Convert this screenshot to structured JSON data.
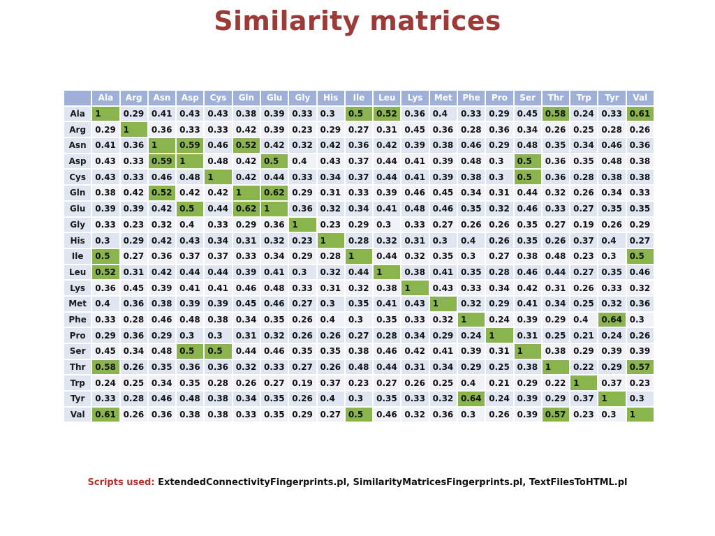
{
  "title": "Similarity matrices",
  "matrix": {
    "highlight_threshold": 0.5,
    "colors": {
      "header": "#9fb0d8",
      "row_odd": "#dfe5f1",
      "row_even": "#f0f2f7",
      "highlight": "#8ab44e",
      "title": "#9b3a36"
    },
    "columns": [
      "Ala",
      "Arg",
      "Asn",
      "Asp",
      "Cys",
      "Gln",
      "Glu",
      "Gly",
      "His",
      "Ile",
      "Leu",
      "Lys",
      "Met",
      "Phe",
      "Pro",
      "Ser",
      "Thr",
      "Trp",
      "Tyr",
      "Val"
    ],
    "rows": [
      {
        "label": "Ala",
        "values": [
          "1",
          "0.29",
          "0.41",
          "0.43",
          "0.43",
          "0.38",
          "0.39",
          "0.33",
          "0.3",
          "0.5",
          "0.52",
          "0.36",
          "0.4",
          "0.33",
          "0.29",
          "0.45",
          "0.58",
          "0.24",
          "0.33",
          "0.61"
        ]
      },
      {
        "label": "Arg",
        "values": [
          "0.29",
          "1",
          "0.36",
          "0.33",
          "0.33",
          "0.42",
          "0.39",
          "0.23",
          "0.29",
          "0.27",
          "0.31",
          "0.45",
          "0.36",
          "0.28",
          "0.36",
          "0.34",
          "0.26",
          "0.25",
          "0.28",
          "0.26"
        ]
      },
      {
        "label": "Asn",
        "values": [
          "0.41",
          "0.36",
          "1",
          "0.59",
          "0.46",
          "0.52",
          "0.42",
          "0.32",
          "0.42",
          "0.36",
          "0.42",
          "0.39",
          "0.38",
          "0.46",
          "0.29",
          "0.48",
          "0.35",
          "0.34",
          "0.46",
          "0.36"
        ]
      },
      {
        "label": "Asp",
        "values": [
          "0.43",
          "0.33",
          "0.59",
          "1",
          "0.48",
          "0.42",
          "0.5",
          "0.4",
          "0.43",
          "0.37",
          "0.44",
          "0.41",
          "0.39",
          "0.48",
          "0.3",
          "0.5",
          "0.36",
          "0.35",
          "0.48",
          "0.38"
        ]
      },
      {
        "label": "Cys",
        "values": [
          "0.43",
          "0.33",
          "0.46",
          "0.48",
          "1",
          "0.42",
          "0.44",
          "0.33",
          "0.34",
          "0.37",
          "0.44",
          "0.41",
          "0.39",
          "0.38",
          "0.3",
          "0.5",
          "0.36",
          "0.28",
          "0.38",
          "0.38"
        ]
      },
      {
        "label": "Gln",
        "values": [
          "0.38",
          "0.42",
          "0.52",
          "0.42",
          "0.42",
          "1",
          "0.62",
          "0.29",
          "0.31",
          "0.33",
          "0.39",
          "0.46",
          "0.45",
          "0.34",
          "0.31",
          "0.44",
          "0.32",
          "0.26",
          "0.34",
          "0.33"
        ]
      },
      {
        "label": "Glu",
        "values": [
          "0.39",
          "0.39",
          "0.42",
          "0.5",
          "0.44",
          "0.62",
          "1",
          "0.36",
          "0.32",
          "0.34",
          "0.41",
          "0.48",
          "0.46",
          "0.35",
          "0.32",
          "0.46",
          "0.33",
          "0.27",
          "0.35",
          "0.35"
        ]
      },
      {
        "label": "Gly",
        "values": [
          "0.33",
          "0.23",
          "0.32",
          "0.4",
          "0.33",
          "0.29",
          "0.36",
          "1",
          "0.23",
          "0.29",
          "0.3",
          "0.33",
          "0.27",
          "0.26",
          "0.26",
          "0.35",
          "0.27",
          "0.19",
          "0.26",
          "0.29"
        ]
      },
      {
        "label": "His",
        "values": [
          "0.3",
          "0.29",
          "0.42",
          "0.43",
          "0.34",
          "0.31",
          "0.32",
          "0.23",
          "1",
          "0.28",
          "0.32",
          "0.31",
          "0.3",
          "0.4",
          "0.26",
          "0.35",
          "0.26",
          "0.37",
          "0.4",
          "0.27"
        ]
      },
      {
        "label": "Ile",
        "values": [
          "0.5",
          "0.27",
          "0.36",
          "0.37",
          "0.37",
          "0.33",
          "0.34",
          "0.29",
          "0.28",
          "1",
          "0.44",
          "0.32",
          "0.35",
          "0.3",
          "0.27",
          "0.38",
          "0.48",
          "0.23",
          "0.3",
          "0.5"
        ]
      },
      {
        "label": "Leu",
        "values": [
          "0.52",
          "0.31",
          "0.42",
          "0.44",
          "0.44",
          "0.39",
          "0.41",
          "0.3",
          "0.32",
          "0.44",
          "1",
          "0.38",
          "0.41",
          "0.35",
          "0.28",
          "0.46",
          "0.44",
          "0.27",
          "0.35",
          "0.46"
        ]
      },
      {
        "label": "Lys",
        "values": [
          "0.36",
          "0.45",
          "0.39",
          "0.41",
          "0.41",
          "0.46",
          "0.48",
          "0.33",
          "0.31",
          "0.32",
          "0.38",
          "1",
          "0.43",
          "0.33",
          "0.34",
          "0.42",
          "0.31",
          "0.26",
          "0.33",
          "0.32"
        ]
      },
      {
        "label": "Met",
        "values": [
          "0.4",
          "0.36",
          "0.38",
          "0.39",
          "0.39",
          "0.45",
          "0.46",
          "0.27",
          "0.3",
          "0.35",
          "0.41",
          "0.43",
          "1",
          "0.32",
          "0.29",
          "0.41",
          "0.34",
          "0.25",
          "0.32",
          "0.36"
        ]
      },
      {
        "label": "Phe",
        "values": [
          "0.33",
          "0.28",
          "0.46",
          "0.48",
          "0.38",
          "0.34",
          "0.35",
          "0.26",
          "0.4",
          "0.3",
          "0.35",
          "0.33",
          "0.32",
          "1",
          "0.24",
          "0.39",
          "0.29",
          "0.4",
          "0.64",
          "0.3"
        ]
      },
      {
        "label": "Pro",
        "values": [
          "0.29",
          "0.36",
          "0.29",
          "0.3",
          "0.3",
          "0.31",
          "0.32",
          "0.26",
          "0.26",
          "0.27",
          "0.28",
          "0.34",
          "0.29",
          "0.24",
          "1",
          "0.31",
          "0.25",
          "0.21",
          "0.24",
          "0.26"
        ]
      },
      {
        "label": "Ser",
        "values": [
          "0.45",
          "0.34",
          "0.48",
          "0.5",
          "0.5",
          "0.44",
          "0.46",
          "0.35",
          "0.35",
          "0.38",
          "0.46",
          "0.42",
          "0.41",
          "0.39",
          "0.31",
          "1",
          "0.38",
          "0.29",
          "0.39",
          "0.39"
        ]
      },
      {
        "label": "Thr",
        "values": [
          "0.58",
          "0.26",
          "0.35",
          "0.36",
          "0.36",
          "0.32",
          "0.33",
          "0.27",
          "0.26",
          "0.48",
          "0.44",
          "0.31",
          "0.34",
          "0.29",
          "0.25",
          "0.38",
          "1",
          "0.22",
          "0.29",
          "0.57"
        ]
      },
      {
        "label": "Trp",
        "values": [
          "0.24",
          "0.25",
          "0.34",
          "0.35",
          "0.28",
          "0.26",
          "0.27",
          "0.19",
          "0.37",
          "0.23",
          "0.27",
          "0.26",
          "0.25",
          "0.4",
          "0.21",
          "0.29",
          "0.22",
          "1",
          "0.37",
          "0.23"
        ]
      },
      {
        "label": "Tyr",
        "values": [
          "0.33",
          "0.28",
          "0.46",
          "0.48",
          "0.38",
          "0.34",
          "0.35",
          "0.26",
          "0.4",
          "0.3",
          "0.35",
          "0.33",
          "0.32",
          "0.64",
          "0.24",
          "0.39",
          "0.29",
          "0.37",
          "1",
          "0.3"
        ]
      },
      {
        "label": "Val",
        "values": [
          "0.61",
          "0.26",
          "0.36",
          "0.38",
          "0.38",
          "0.33",
          "0.35",
          "0.29",
          "0.27",
          "0.5",
          "0.46",
          "0.32",
          "0.36",
          "0.3",
          "0.26",
          "0.39",
          "0.57",
          "0.23",
          "0.3",
          "1"
        ]
      }
    ]
  },
  "footer": {
    "label": "Scripts used:",
    "text": "ExtendedConnectivityFingerprints.pl, SimilarityMatricesFingerprints.pl, TextFilesToHTML.pl"
  }
}
